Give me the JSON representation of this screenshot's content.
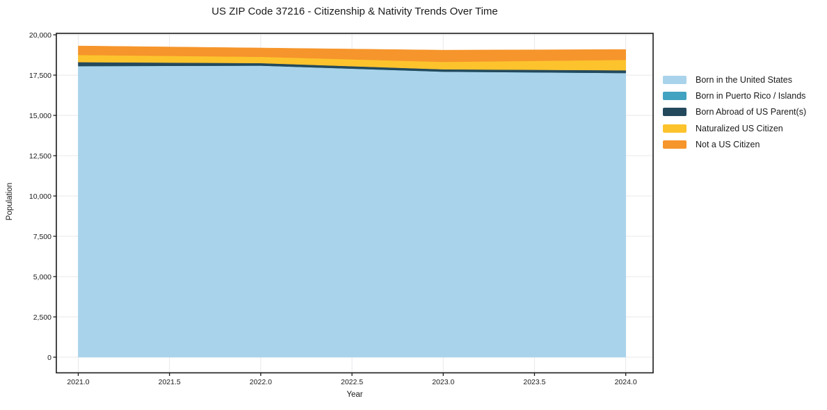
{
  "figure": {
    "title": "US ZIP Code 37216 - Citizenship & Nativity Trends Over Time",
    "background_color": "#ffffff",
    "spine_color": "#1a1a1a",
    "grid_color": "#e8e8eb",
    "text_color": "#1a1a1a"
  },
  "chart_data": {
    "type": "area",
    "stacked": true,
    "title": "US ZIP Code 37216 - Citizenship & Nativity Trends Over Time",
    "xlabel": "Year",
    "ylabel": "Population",
    "x": [
      2021,
      2022,
      2023,
      2024
    ],
    "series": [
      {
        "name": "Born in the United States",
        "color": "#A9D3EA",
        "values": [
          18060,
          18090,
          17715,
          17630
        ]
      },
      {
        "name": "Born in Puerto Rico / Islands",
        "color": "#41A2C1",
        "values": [
          0,
          0,
          0,
          0
        ]
      },
      {
        "name": "Born Abroad of US Parent(s)",
        "color": "#24495C",
        "values": [
          245,
          155,
          145,
          170
        ]
      },
      {
        "name": "Naturalized US Citizen",
        "color": "#FCC32D",
        "values": [
          445,
          390,
          460,
          645
        ]
      },
      {
        "name": "Not a US Citizen",
        "color": "#F6952B",
        "values": [
          560,
          550,
          730,
          645
        ]
      }
    ],
    "x_ticks": {
      "values": [
        2021.0,
        2021.5,
        2022.0,
        2022.5,
        2023.0,
        2023.5,
        2024.0
      ],
      "labels": [
        "2021.0",
        "2021.5",
        "2022.0",
        "2022.5",
        "2023.0",
        "2023.5",
        "2024.0"
      ]
    },
    "y_ticks": {
      "values": [
        0,
        2500,
        5000,
        7500,
        10000,
        12500,
        15000,
        17500,
        20000
      ],
      "labels": [
        "0",
        "2,500",
        "5,000",
        "7,500",
        "10,000",
        "12,500",
        "15,000",
        "17,500",
        "20,000"
      ]
    },
    "xlim": [
      2020.88,
      2024.15
    ],
    "ylim": [
      -970,
      20090
    ],
    "grid": true,
    "legend_position": "right"
  }
}
